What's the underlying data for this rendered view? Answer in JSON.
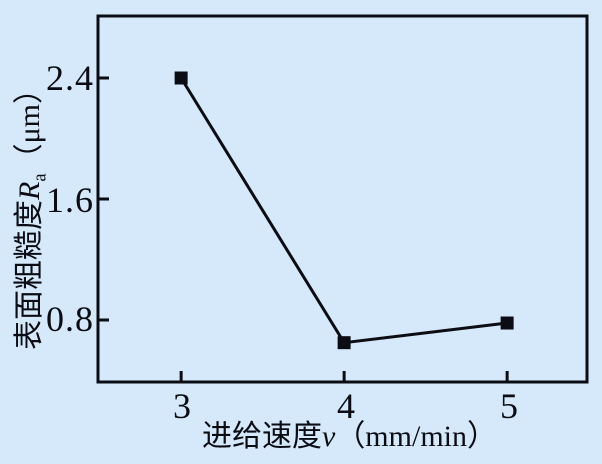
{
  "figure": {
    "background_color": "#d5e9fb",
    "ink_color": "#0c0d14"
  },
  "chart_data": {
    "type": "line",
    "title": "",
    "x": [
      3,
      4,
      5
    ],
    "series": [
      {
        "name": "表面粗糙度Ra",
        "values": [
          2.4,
          0.65,
          0.78
        ]
      }
    ],
    "xlabel": "进给速度v（mm/min）",
    "ylabel": "表面粗糙度Ra（μm）",
    "xlabel_parts": {
      "prefix": "进给速度",
      "variable": "v",
      "unit": "（mm/min）"
    },
    "ylabel_parts": {
      "prefix": "表面粗糙度",
      "variable": "R",
      "subscript": "a",
      "unit": "（μm）"
    },
    "xticks": {
      "values": [
        3,
        4,
        5
      ],
      "labels": [
        "3",
        "4",
        "5"
      ]
    },
    "yticks": {
      "values": [
        0.8,
        1.6,
        2.4
      ],
      "labels": [
        "0.8",
        "1.6",
        "2.4"
      ]
    },
    "xlim": [
      2.49,
      5.49
    ],
    "ylim": [
      0.39,
      2.81
    ],
    "grid": false,
    "legend": "none",
    "marker": "square",
    "marker_size": 13,
    "line_width": 3,
    "line_color": "#0c0d14"
  }
}
